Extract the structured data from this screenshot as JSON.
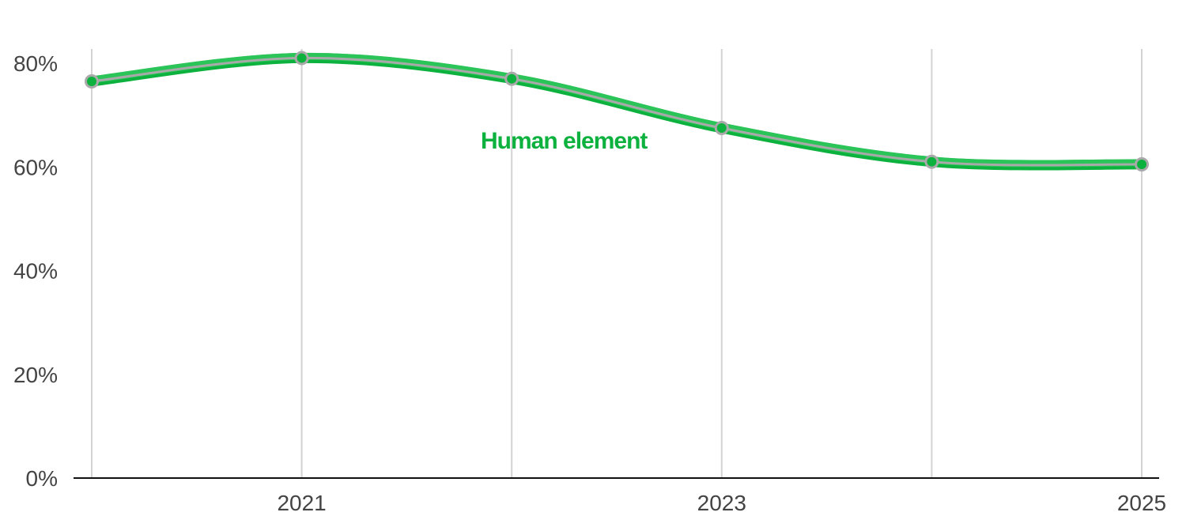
{
  "chart_data": {
    "type": "line",
    "title": "",
    "xlabel": "",
    "ylabel": "",
    "x": [
      2020,
      2021,
      2022,
      2023,
      2024,
      2025
    ],
    "xlim": [
      2020,
      2025
    ],
    "x_tick_values": [
      2021,
      2023,
      2025
    ],
    "x_tick_labels": [
      "2021",
      "2023",
      "2025"
    ],
    "ylim": [
      0,
      80
    ],
    "y_tick_values": [
      0,
      20,
      40,
      60,
      80
    ],
    "y_tick_labels": [
      "0%",
      "20%",
      "40%",
      "60%",
      "80%"
    ],
    "vertical_grid": true,
    "horizontal_grid": false,
    "series": [
      {
        "name": "Human element",
        "values": [
          76.5,
          81,
          77,
          67.5,
          61,
          60.5
        ],
        "color": "#0cb13e",
        "marker_color": "#0cb13e",
        "marker_outline": "#a9a9a9",
        "center_line_color": "#a9a9a9",
        "label_placement": "inline"
      }
    ],
    "colors": {
      "grid": "#d3d3d3",
      "axis": "#111111",
      "tick_text": "#444444"
    }
  }
}
